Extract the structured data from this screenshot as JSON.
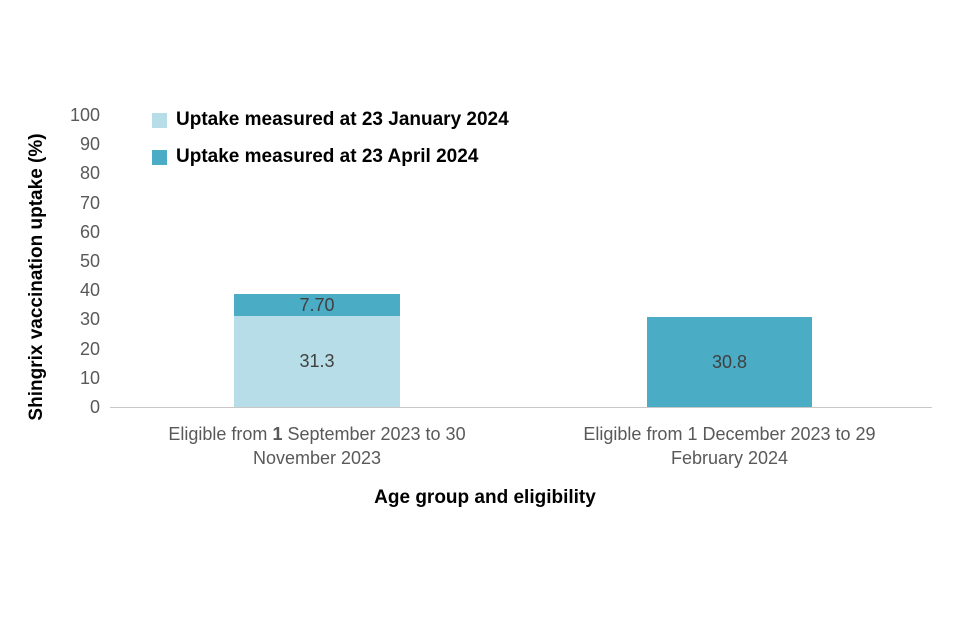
{
  "chart_data": {
    "type": "bar",
    "stacked": true,
    "xlabel": "Age group and eligibility",
    "ylabel": "Shingrix vaccination uptake (%)",
    "ylim": [
      0,
      100
    ],
    "yticks": [
      0,
      10,
      20,
      30,
      40,
      50,
      60,
      70,
      80,
      90,
      100
    ],
    "grid": "off",
    "legend_position": "top-left",
    "series": [
      {
        "name": "Uptake measured at 23 January 2024",
        "color": "#b7dee8"
      },
      {
        "name": "Uptake measured at 23 April 2024",
        "color": "#4bacc6"
      }
    ],
    "categories": [
      {
        "line1_parts": [
          {
            "text": "Eligible from ",
            "bold": false
          },
          {
            "text": "1",
            "bold": true
          },
          {
            "text": " September 2023 to 30",
            "bold": false
          }
        ],
        "line2": "November 2023"
      },
      {
        "line1_parts": [
          {
            "text": "Eligible from 1 December 2023 to 29",
            "bold": false
          }
        ],
        "line2": "February 2024"
      }
    ],
    "bars": [
      {
        "segments": [
          {
            "series": 0,
            "value": 31.3,
            "label": "31.3"
          },
          {
            "series": 1,
            "value": 7.7,
            "label": "7.70"
          }
        ]
      },
      {
        "segments": [
          {
            "series": 1,
            "value": 30.8,
            "label": "30.8"
          }
        ]
      }
    ],
    "colors": {
      "axis_line": "#c8c8c8",
      "tick_text": "#595959",
      "category_text": "#595959",
      "value_text": "#404040",
      "title_text": "#000000"
    }
  }
}
